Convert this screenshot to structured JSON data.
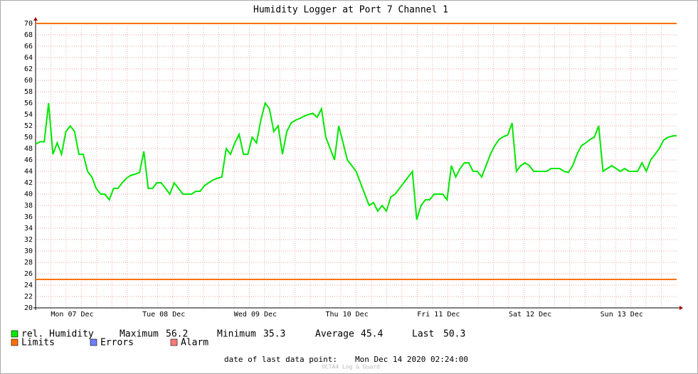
{
  "chart_data": {
    "type": "line",
    "title": "Humidity Logger at Port 7 Channel 1",
    "x_labels": [
      "Mon 07 Dec",
      "Tue 08 Dec",
      "Wed 09 Dec",
      "Thu 10 Dec",
      "Fri 11 Dec",
      "Sat 12 Dec",
      "Sun 13 Dec"
    ],
    "ylim": [
      20,
      70
    ],
    "yticks": [
      20,
      22,
      24,
      26,
      28,
      30,
      32,
      34,
      36,
      38,
      40,
      42,
      44,
      46,
      48,
      50,
      52,
      54,
      56,
      58,
      60,
      62,
      64,
      66,
      68,
      70
    ],
    "grid": true,
    "series": [
      {
        "name": "rel. Humidity",
        "color": "#00e800",
        "values": [
          48.8,
          49.2,
          49.2,
          56,
          47,
          49,
          47,
          51,
          52,
          51,
          47,
          47,
          44,
          43,
          41,
          40,
          40,
          39,
          41,
          41,
          42,
          42.8,
          43.3,
          43.5,
          43.8,
          47.5,
          41,
          41,
          42,
          42,
          41,
          40,
          42,
          41,
          40,
          40,
          40,
          40.5,
          40.5,
          41.5,
          42,
          42.5,
          42.8,
          43,
          48,
          47,
          49,
          50.5,
          47,
          47,
          50,
          49,
          53,
          56,
          55,
          51,
          52,
          47,
          51,
          52.5,
          53,
          53.3,
          53.7,
          54,
          54.2,
          53.5,
          55,
          50,
          48,
          46,
          52,
          49,
          46,
          45,
          44,
          42,
          40,
          38,
          38.5,
          37,
          38,
          37,
          39.5,
          40,
          41,
          42,
          43,
          44,
          35.5,
          38,
          39,
          39,
          40,
          40,
          40,
          39,
          45,
          43,
          44.5,
          45.5,
          45.5,
          44,
          44,
          43,
          45,
          47,
          48.5,
          49.6,
          50.1,
          50.4,
          52.5,
          44,
          45,
          45.5,
          45,
          44,
          44,
          44,
          44,
          44.5,
          44.5,
          44.5,
          44,
          43.8,
          45,
          47,
          48.5,
          49,
          49.6,
          50,
          52,
          44,
          44.5,
          45,
          44.5,
          44,
          44.5,
          44,
          44,
          44,
          45.5,
          44,
          46,
          47,
          48,
          49.5,
          50,
          50.2,
          50.3
        ]
      }
    ],
    "limits": {
      "name": "Limits",
      "color": "#ff7000",
      "values": [
        70,
        25
      ]
    },
    "other_legend": [
      {
        "name": "Errors",
        "color": "#6f7fff"
      },
      {
        "name": "Alarm",
        "color": "#ff7a7a"
      }
    ],
    "stats": [
      {
        "label": "Maximum",
        "value": 56.2
      },
      {
        "label": "Minimum",
        "value": 35.3
      },
      {
        "label": "Average",
        "value": 45.4
      },
      {
        "label": "Last",
        "value": 50.3
      }
    ],
    "footer_label": "date of last data point:",
    "footer_value": "Mon Dec 14 2020 02:24:00",
    "watermark": "OCTA4 Log & Guard"
  }
}
